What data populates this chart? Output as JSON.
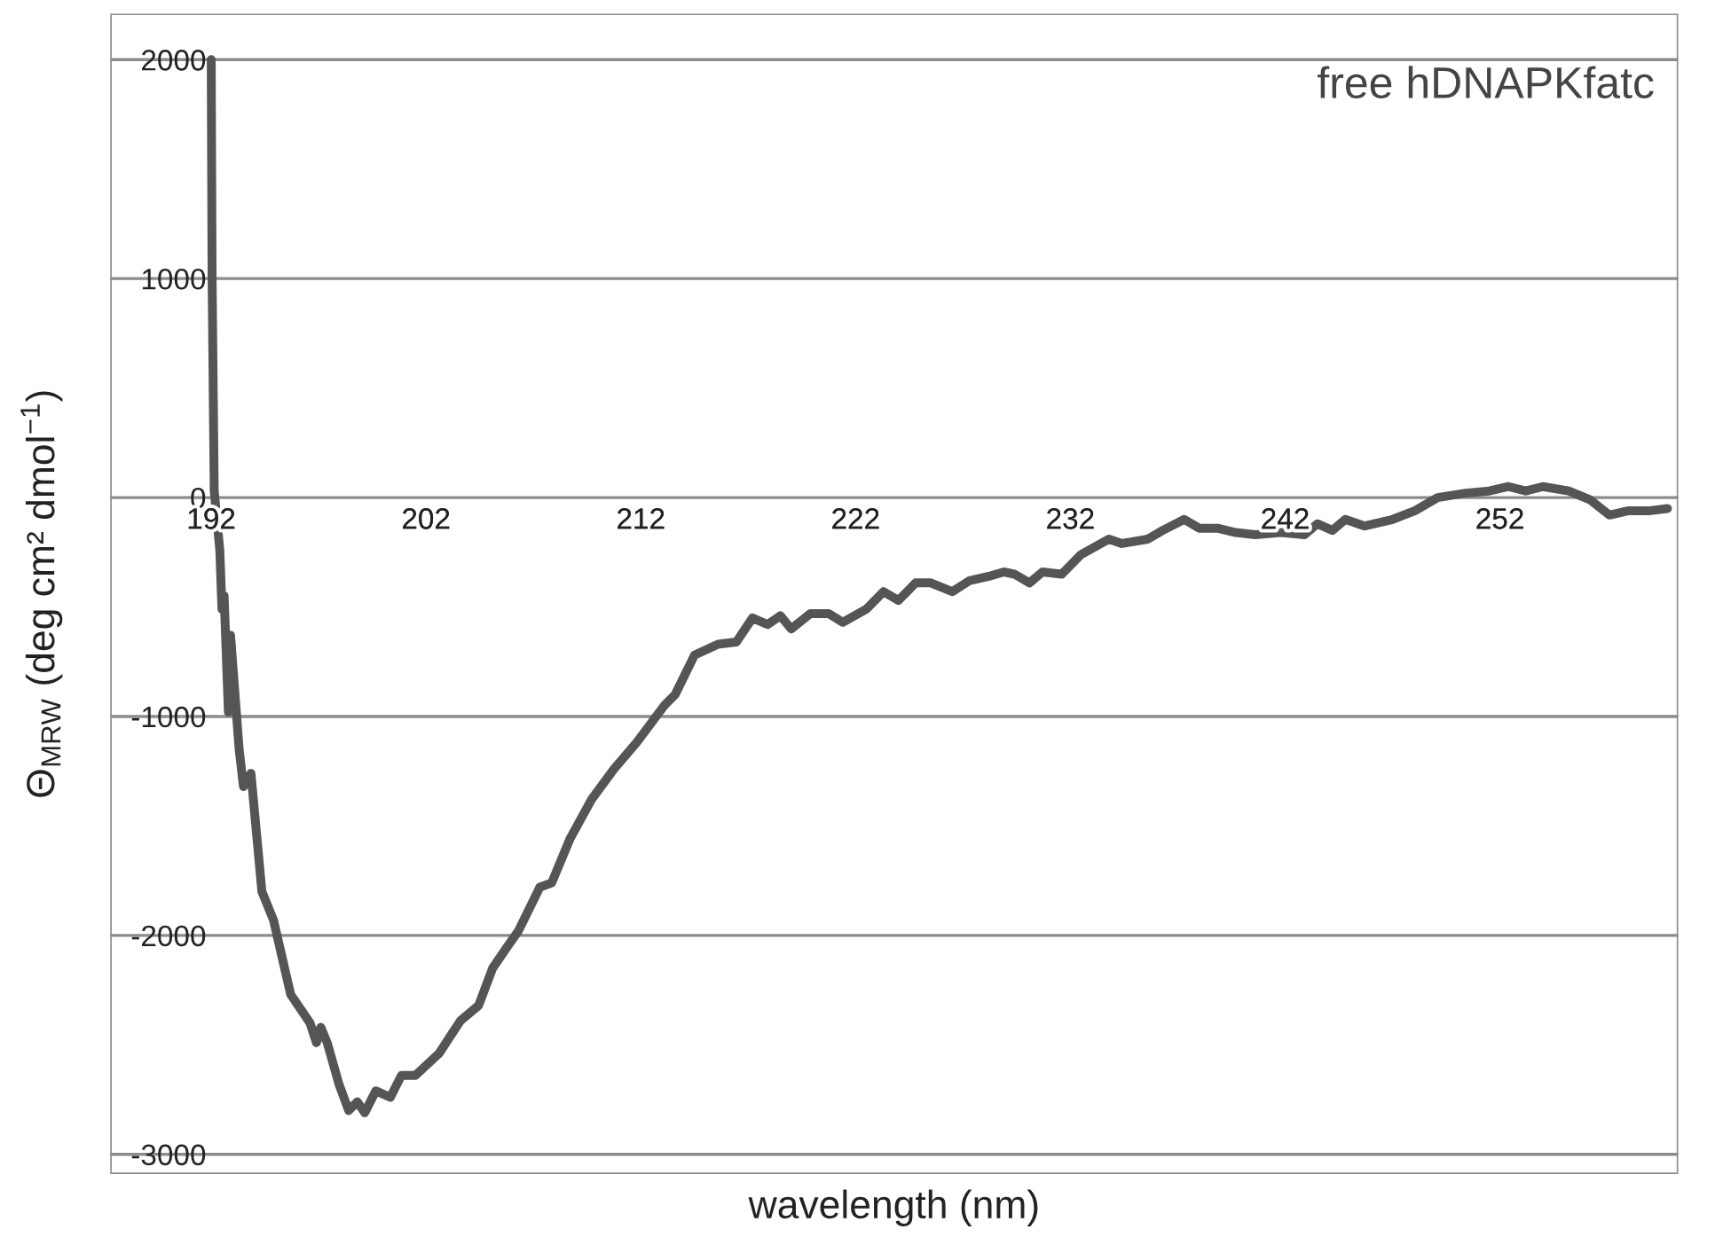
{
  "chart_data": {
    "type": "line",
    "xlabel": "wavelength (nm)",
    "ylabel": "Θ$_{MRW}$ (deg cm² dmol$^{−1}$)",
    "annotations": [
      "free hDNAPKfatc"
    ],
    "xlim": [
      187.3,
      260.3
    ],
    "ylim": [
      -3090,
      2210
    ],
    "xticks": [
      192,
      202,
      212,
      222,
      232,
      242,
      252
    ],
    "yticks": [
      -3000,
      -2000,
      -1000,
      0,
      1000,
      2000
    ],
    "grid": "y",
    "marker": "none",
    "line_style": "solid",
    "series": [
      {
        "color": "#555555",
        "x": [
          192.0,
          192.04,
          192.14,
          192.4,
          192.5,
          192.6,
          192.8,
          192.9,
          193.3,
          193.5,
          193.85,
          194.36,
          194.9,
          195.7,
          196.6,
          196.9,
          197.1,
          197.4,
          197.95,
          198.4,
          198.8,
          199.15,
          199.66,
          200.34,
          200.85,
          201.5,
          202.6,
          203.6,
          204.45,
          205.1,
          205.8,
          206.3,
          207.3,
          207.85,
          208.7,
          209.7,
          210.75,
          211.8,
          213.1,
          213.6,
          214.5,
          215.6,
          216.45,
          217.2,
          217.9,
          218.5,
          219.0,
          219.9,
          220.75,
          221.4,
          222.5,
          223.3,
          224.0,
          224.8,
          225.5,
          226.5,
          227.3,
          228.2,
          228.9,
          229.4,
          230.1,
          230.7,
          231.6,
          232.5,
          233.8,
          234.4,
          235.6,
          236.3,
          237.3,
          238.0,
          238.85,
          239.7,
          240.6,
          241.8,
          242.9,
          243.5,
          244.2,
          244.8,
          245.7,
          247.0,
          248.05,
          249.1,
          250.4,
          251.5,
          252.4,
          253.2,
          254.0,
          255.2,
          256.2,
          257.1,
          258.0,
          259.0,
          259.8
        ],
        "values": [
          2000,
          1010,
          30,
          -240,
          -510,
          -450,
          -980,
          -630,
          -1150,
          -1320,
          -1260,
          -1800,
          -1930,
          -2270,
          -2400,
          -2490,
          -2420,
          -2490,
          -2680,
          -2800,
          -2760,
          -2810,
          -2710,
          -2740,
          -2640,
          -2640,
          -2540,
          -2390,
          -2320,
          -2150,
          -2050,
          -1980,
          -1780,
          -1760,
          -1560,
          -1380,
          -1240,
          -1120,
          -950,
          -900,
          -720,
          -670,
          -660,
          -550,
          -580,
          -540,
          -600,
          -530,
          -530,
          -570,
          -510,
          -430,
          -470,
          -390,
          -390,
          -430,
          -380,
          -360,
          -340,
          -350,
          -390,
          -340,
          -350,
          -260,
          -190,
          -210,
          -190,
          -150,
          -100,
          -140,
          -140,
          -160,
          -170,
          -160,
          -170,
          -120,
          -150,
          -100,
          -130,
          -100,
          -60,
          0,
          20,
          30,
          50,
          30,
          50,
          30,
          -10,
          -80,
          -60,
          -60,
          -50
        ]
      }
    ]
  }
}
